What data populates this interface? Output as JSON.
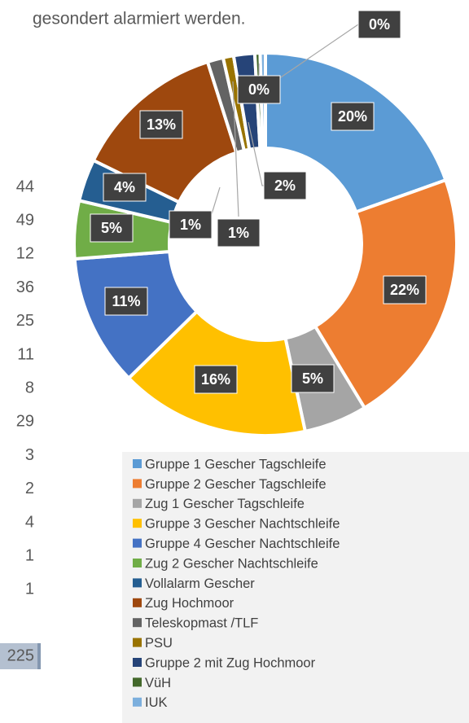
{
  "intro": "gesondert alarmiert werden.",
  "total": 225,
  "chart_data": {
    "type": "donut",
    "categories": [
      "Gruppe 1 Gescher Tagschleife",
      "Gruppe 2 Gescher Tagschleife",
      "Zug 1 Gescher Tagschleife",
      "Gruppe 3 Gescher Nachtschleife",
      "Gruppe 4 Gescher Nachtschleife",
      "Zug 2 Gescher Nachtschleife",
      "Vollalarm Gescher",
      "Zug Hochmoor",
      "Teleskopmast /TLF",
      "PSU",
      "Gruppe 2 mit Zug Hochmoor",
      "VüH",
      "IUK"
    ],
    "values": [
      44,
      49,
      12,
      36,
      25,
      11,
      8,
      29,
      3,
      2,
      4,
      1,
      1
    ],
    "value_labels": [
      "20%",
      "22%",
      "5%",
      "16%",
      "11%",
      "5%",
      "4%",
      "13%",
      "1%",
      "1%",
      "2%",
      "0%",
      "0%"
    ],
    "colors": [
      "#5b9bd5",
      "#ed7d31",
      "#a5a5a5",
      "#ffc000",
      "#4472c4",
      "#70ad47",
      "#255e91",
      "#9e480e",
      "#636363",
      "#997300",
      "#264478",
      "#43682b",
      "#7cafdd"
    ],
    "legend": "bottom"
  }
}
